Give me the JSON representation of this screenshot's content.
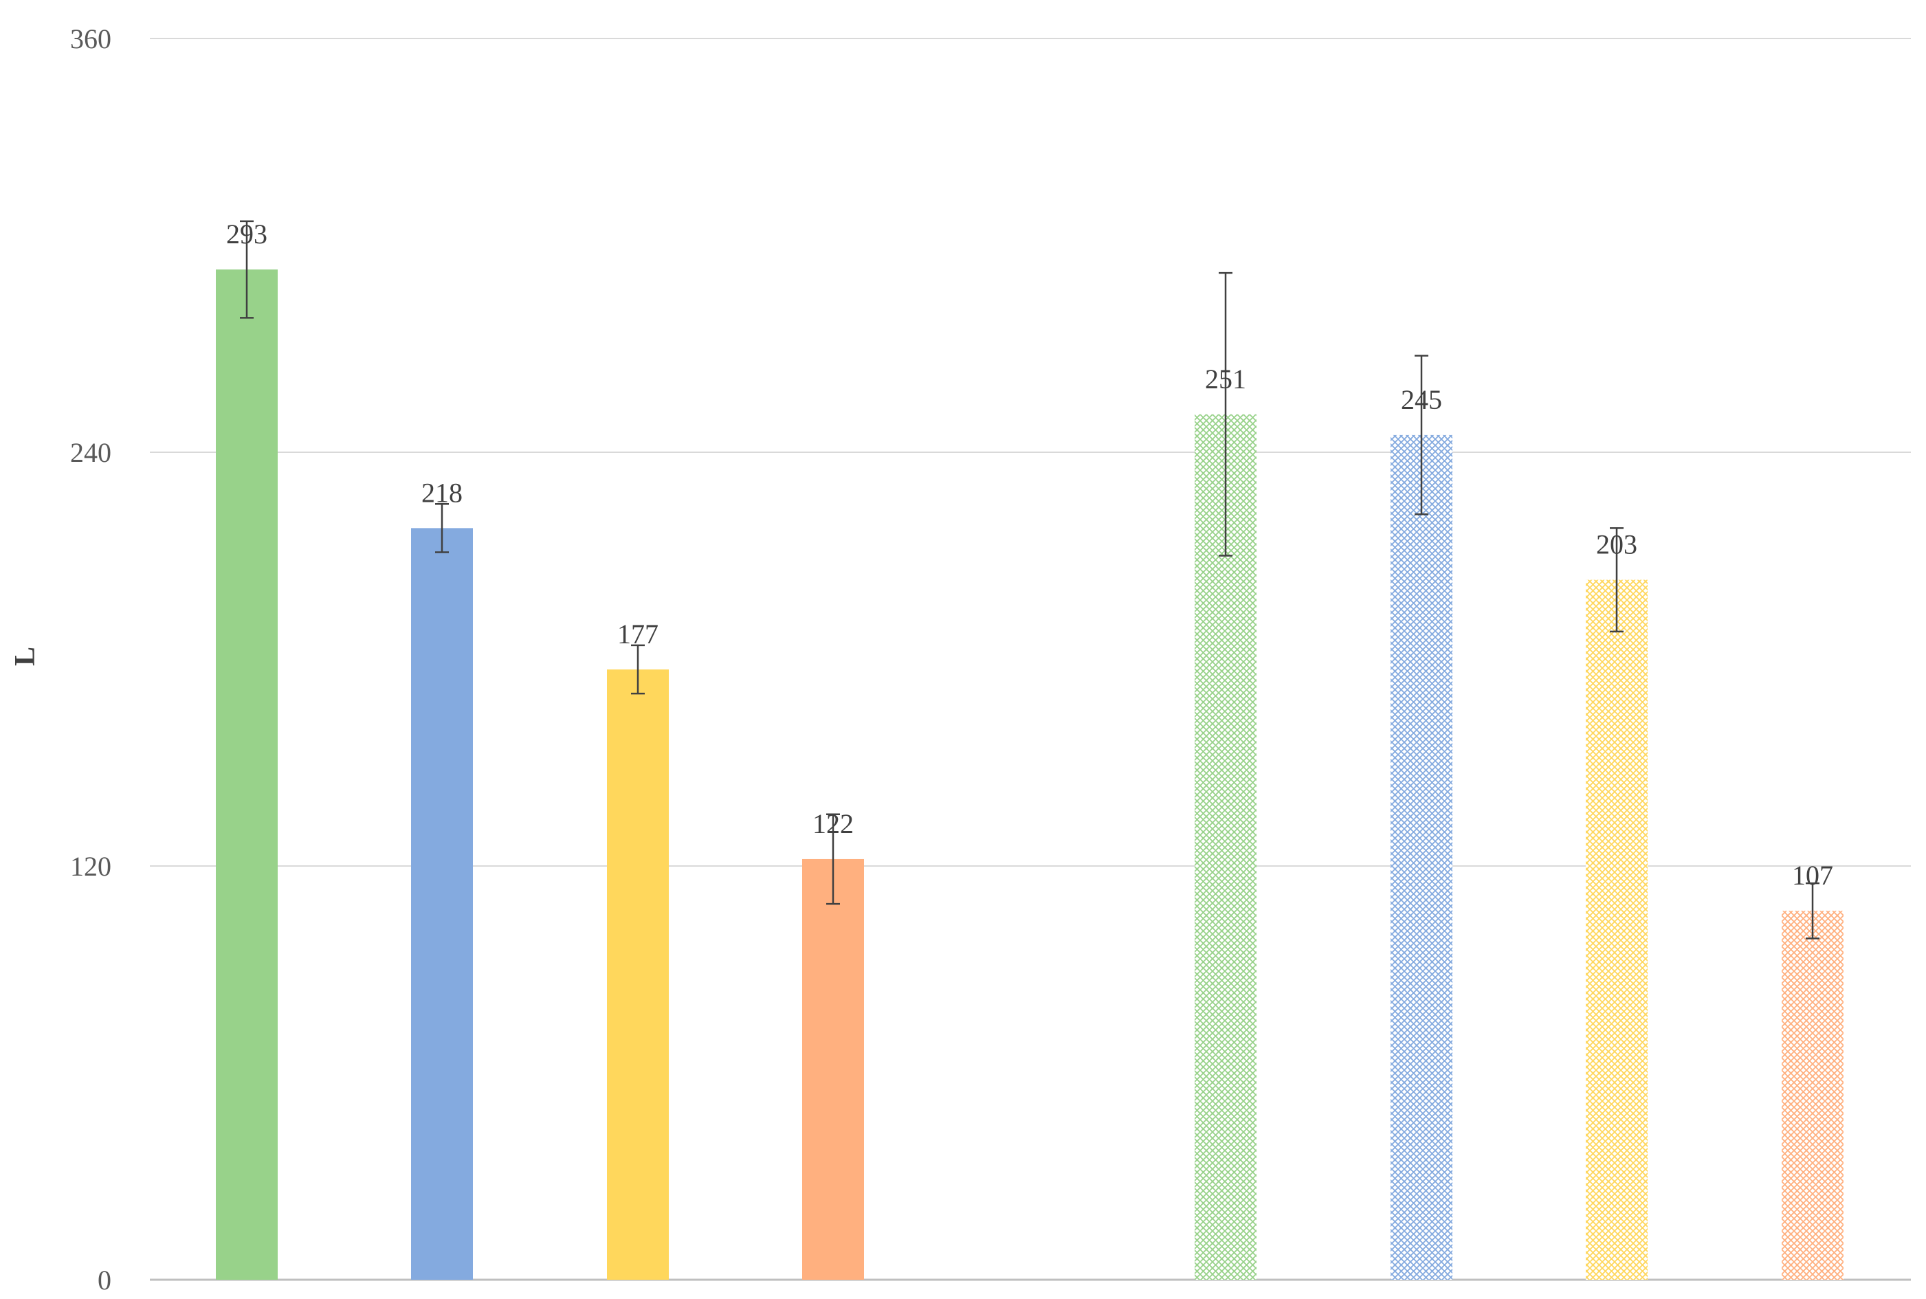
{
  "chart_data": {
    "type": "bar",
    "title": "",
    "xlabel": "",
    "ylabel": "L",
    "ylim": [
      0,
      360
    ],
    "yticks": [
      "0",
      "120",
      "240",
      "360"
    ],
    "grid": true,
    "legend": "none",
    "series": [
      {
        "fill": "solid",
        "values": [
          293,
          218,
          177,
          122
        ],
        "error": [
          14,
          7,
          7,
          13
        ],
        "colors": [
          "#98d28a",
          "#84aadf",
          "#ffd75c",
          "#ffb07f"
        ],
        "labels": [
          "293",
          "218",
          "177",
          "122"
        ]
      },
      {
        "fill": "hatched",
        "values": [
          251,
          245,
          203,
          107
        ],
        "error": [
          41,
          23,
          15,
          8
        ],
        "colors": [
          "#98d28a",
          "#84aadf",
          "#ffd75c",
          "#ffb07f"
        ],
        "labels": [
          "251",
          "245",
          "203",
          "107"
        ]
      }
    ]
  }
}
